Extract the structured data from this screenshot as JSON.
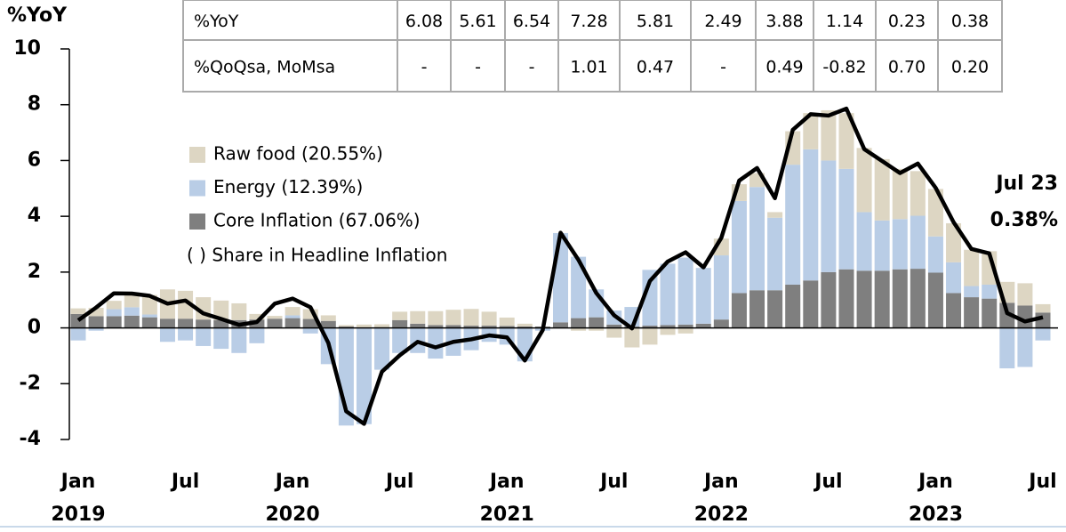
{
  "chart_data": {
    "type": "bar",
    "y_label": "%YoY",
    "ylim": [
      -4,
      10
    ],
    "yticks": [
      -4,
      -2,
      0,
      2,
      4,
      6,
      8,
      10
    ],
    "categories": [
      "Jan",
      null,
      null,
      null,
      null,
      null,
      "Jul",
      null,
      null,
      null,
      null,
      null,
      "Jan",
      null,
      null,
      null,
      null,
      null,
      "Jul",
      null,
      null,
      null,
      null,
      null,
      "Jan",
      null,
      null,
      null,
      null,
      null,
      "Jul",
      null,
      null,
      null,
      null,
      null,
      "Jan",
      null,
      null,
      null,
      null,
      null,
      "Jul",
      null,
      null,
      null,
      null,
      null,
      "Jan",
      null,
      null,
      null,
      null,
      null,
      "Jul"
    ],
    "years": [
      "2019",
      "2020",
      "2021",
      "2022",
      "2023"
    ],
    "series": [
      {
        "name": "Raw food (20.55%)",
        "color": "#ddd6c3",
        "values": [
          0.2,
          0.3,
          0.3,
          0.5,
          0.7,
          1.05,
          1.0,
          0.8,
          0.7,
          0.6,
          0.2,
          0.1,
          0.3,
          0.35,
          0.2,
          0.05,
          0.1,
          0.1,
          0.3,
          0.45,
          0.5,
          0.55,
          0.6,
          0.5,
          0.3,
          0.1,
          0.0,
          0.0,
          -0.1,
          -0.1,
          -0.35,
          -0.7,
          -0.6,
          -0.25,
          -0.2,
          0.0,
          0.6,
          0.6,
          0.5,
          0.2,
          1.2,
          1.3,
          1.8,
          2.0,
          2.3,
          2.2,
          1.8,
          1.6,
          1.7,
          1.4,
          1.3,
          1.2,
          0.75,
          0.8,
          0.3
        ]
      },
      {
        "name": "Energy (12.39%)",
        "color": "#b9cde6",
        "values": [
          -0.45,
          -0.1,
          0.25,
          0.3,
          0.1,
          -0.5,
          -0.45,
          -0.65,
          -0.75,
          -0.9,
          -0.55,
          0.0,
          0.1,
          -0.2,
          -1.3,
          -3.5,
          -3.45,
          -1.5,
          -0.9,
          -0.9,
          -1.1,
          -1.0,
          -0.8,
          -0.5,
          -0.6,
          -1.2,
          -0.1,
          3.2,
          2.2,
          1.0,
          0.5,
          0.7,
          2.0,
          2.2,
          2.4,
          2.0,
          2.3,
          3.3,
          3.7,
          2.6,
          4.3,
          4.7,
          4.0,
          3.6,
          2.1,
          1.8,
          1.8,
          1.9,
          1.3,
          1.1,
          0.4,
          0.5,
          -1.45,
          -1.4,
          -0.45
        ]
      },
      {
        "name": "Core Inflation (67.06%)",
        "color": "#7f7f7f",
        "values": [
          0.5,
          0.42,
          0.42,
          0.44,
          0.38,
          0.33,
          0.33,
          0.3,
          0.28,
          0.28,
          0.3,
          0.33,
          0.35,
          0.32,
          0.25,
          0.05,
          0.02,
          0.03,
          0.28,
          0.15,
          0.1,
          0.1,
          0.08,
          0.08,
          0.07,
          0.05,
          0.05,
          0.2,
          0.35,
          0.38,
          0.12,
          0.05,
          0.08,
          0.1,
          0.12,
          0.15,
          0.3,
          1.25,
          1.35,
          1.35,
          1.55,
          1.7,
          2.0,
          2.1,
          2.05,
          2.05,
          2.1,
          2.12,
          1.98,
          1.25,
          1.1,
          1.05,
          0.9,
          0.8,
          0.55
        ]
      }
    ],
    "line": {
      "color": "#000000",
      "values": [
        0.27,
        0.73,
        1.24,
        1.23,
        1.15,
        0.87,
        0.98,
        0.52,
        0.32,
        0.11,
        0.21,
        0.87,
        1.05,
        0.74,
        -0.54,
        -2.99,
        -3.44,
        -1.57,
        -0.98,
        -0.5,
        -0.7,
        -0.5,
        -0.41,
        -0.27,
        -0.34,
        -1.17,
        -0.08,
        3.41,
        2.44,
        1.25,
        0.45,
        -0.02,
        1.68,
        2.38,
        2.71,
        2.17,
        3.23,
        5.28,
        5.73,
        4.65,
        7.1,
        7.66,
        7.61,
        7.86,
        6.41,
        5.98,
        5.55,
        5.89,
        5.02,
        3.79,
        2.83,
        2.67,
        0.53,
        0.23,
        0.38
      ]
    },
    "legend_note": "( ) Share in Headline Inflation",
    "annotations": [
      "Jul 23",
      "0.38%"
    ]
  },
  "table": {
    "rows": [
      [
        "%YoY",
        "6.08",
        "5.61",
        "6.54",
        "7.28",
        "5.81",
        "2.49",
        "3.88",
        "1.14",
        "0.23",
        "0.38"
      ],
      [
        "%QoQsa, MoMsa",
        "-",
        "-",
        "-",
        "1.01",
        "0.47",
        "-",
        "0.49",
        "-0.82",
        "0.70",
        "0.20"
      ]
    ]
  }
}
